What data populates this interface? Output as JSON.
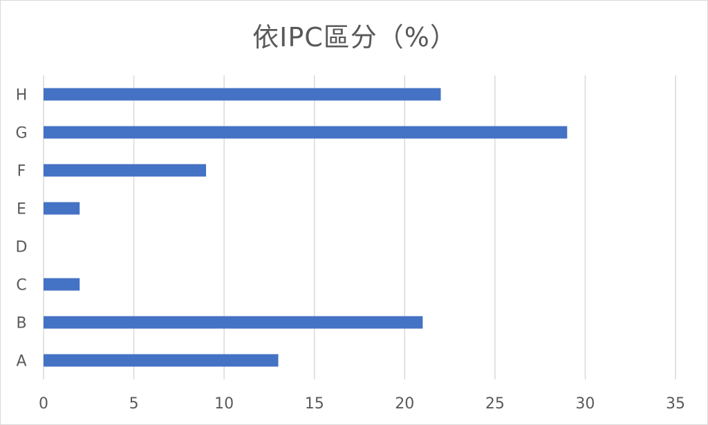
{
  "chart_data": {
    "type": "bar",
    "orientation": "horizontal",
    "title": "依IPC區分（%）",
    "categories": [
      "A",
      "B",
      "C",
      "D",
      "E",
      "F",
      "G",
      "H"
    ],
    "values": [
      13,
      21,
      2,
      0,
      2,
      9,
      29,
      22
    ],
    "x_ticks": [
      "0",
      "5",
      "10",
      "15",
      "20",
      "25",
      "30",
      "35"
    ],
    "xlim": [
      0,
      35
    ],
    "grid": "vertical",
    "legend": "none",
    "bar_color": "#4472c4",
    "grid_color": "#d9d9d9",
    "text_color": "#595959"
  }
}
